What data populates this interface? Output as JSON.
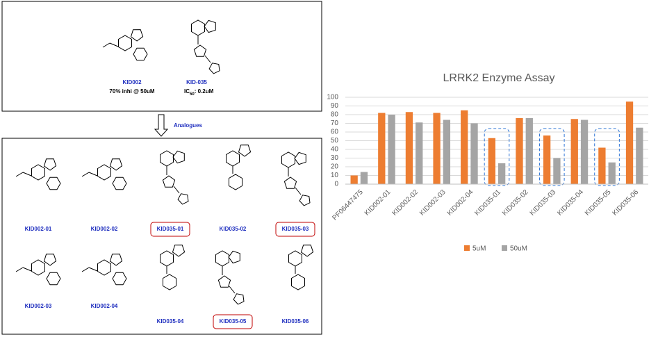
{
  "chart_data": {
    "type": "bar",
    "title": "LRRK2 Enzyme Assay",
    "categories": [
      "PF06447475",
      "KID002-01",
      "KID002-02",
      "KID002-03",
      "KID002-04",
      "KID035-01",
      "KID035-02",
      "KID035-03",
      "KID035-04",
      "KID035-05",
      "KID035-06"
    ],
    "series": [
      {
        "name": "5uM",
        "color": "#ed7d31",
        "values": [
          10,
          82,
          83,
          82,
          85,
          53,
          76,
          56,
          75,
          42,
          95
        ]
      },
      {
        "name": "50uM",
        "color": "#a5a5a5",
        "values": [
          14,
          80,
          71,
          74,
          70,
          24,
          76,
          30,
          74,
          25,
          65
        ]
      }
    ],
    "ylim": [
      0,
      100
    ],
    "yticks": [
      0,
      10,
      20,
      30,
      40,
      50,
      60,
      70,
      80,
      90,
      100
    ],
    "grid": true,
    "legend": "bottom"
  },
  "leads": [
    {
      "name": "KID002",
      "note": "70% inhi @ 50uM"
    },
    {
      "name": "KID-035",
      "note": [
        "IC",
        "50",
        ": 0.2uM"
      ]
    }
  ],
  "arrow_label": "Analogues",
  "analogues": [
    "KID002-01",
    "KID002-02",
    "KID035-01",
    "KID035-02",
    "KID035-03",
    "KID002-03",
    "KID002-04",
    "KID035-04",
    "KID035-05",
    "KID035-06"
  ]
}
